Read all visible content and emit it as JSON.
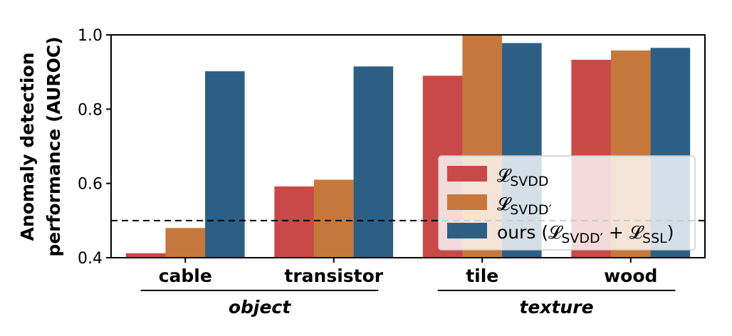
{
  "chart_data": {
    "type": "bar",
    "title": "",
    "xlabel": "",
    "ylabel": [
      "Anomaly detection",
      "performance (AUROC)"
    ],
    "ylim": [
      0.4,
      1.0
    ],
    "yticks": [
      "0.4",
      "0.6",
      "0.8",
      "1.0"
    ],
    "ytick_values": [
      0.4,
      0.6,
      0.8,
      1.0
    ],
    "categories": [
      "cable",
      "transistor",
      "tile",
      "wood"
    ],
    "groups": [
      {
        "label": "object",
        "categories": [
          "cable",
          "transistor"
        ]
      },
      {
        "label": "texture",
        "categories": [
          "tile",
          "wood"
        ]
      }
    ],
    "series": [
      {
        "name": "𝓛SVDD",
        "legend": {
          "base": "𝓛",
          "sub": "SVDD",
          "prefix": "",
          "suffix": ""
        },
        "color": "#c84947",
        "values": [
          0.412,
          0.592,
          0.89,
          0.933
        ]
      },
      {
        "name": "𝓛SVDD′",
        "legend": {
          "base": "𝓛",
          "sub": "SVDD′",
          "prefix": "",
          "suffix": ""
        },
        "color": "#c6783c",
        "values": [
          0.48,
          0.61,
          1.0,
          0.958
        ]
      },
      {
        "name": "ours (𝓛SVDD′ + 𝓛SSL)",
        "legend": {
          "prefix": "ours (",
          "base": "𝓛",
          "sub": "SVDD′",
          "mid": " + ",
          "base2": "𝓛",
          "sub2": "SSL",
          "suffix": ")"
        },
        "color": "#2d5f85",
        "values": [
          0.902,
          0.915,
          0.978,
          0.965
        ]
      }
    ],
    "reference_line": {
      "value": 0.5,
      "style": "dashed"
    },
    "legend_position": "lower-right",
    "grid": false
  }
}
